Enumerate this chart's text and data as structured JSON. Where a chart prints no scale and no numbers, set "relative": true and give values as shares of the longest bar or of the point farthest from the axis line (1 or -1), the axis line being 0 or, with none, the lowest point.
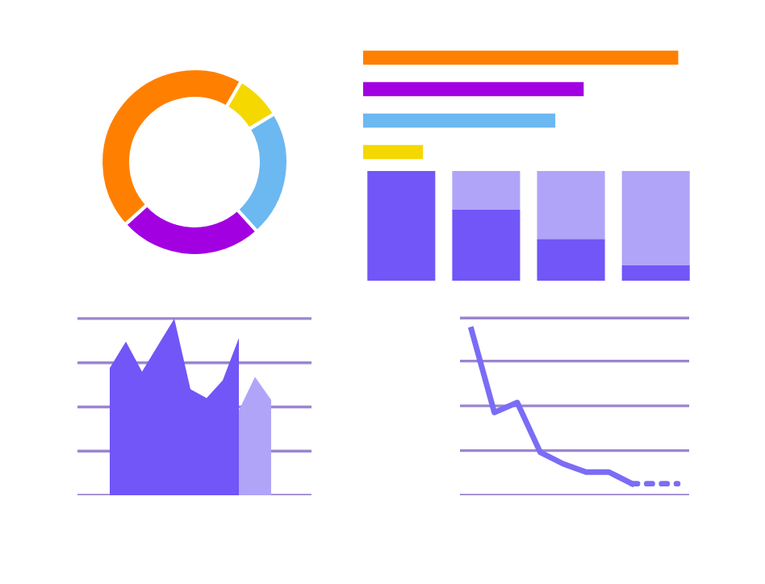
{
  "chart_data": [
    {
      "type": "donut",
      "categories": [
        null,
        null,
        null,
        null
      ],
      "values": [
        8,
        22,
        25,
        45
      ],
      "colors": [
        "#f5d800",
        "#6cb8f0",
        "#a200e0",
        "#ff8000"
      ]
    },
    {
      "type": "bar",
      "orientation": "horizontal",
      "relative": true,
      "categories": [
        null,
        null,
        null,
        null
      ],
      "values": [
        1,
        0.7,
        0.61,
        0.19
      ],
      "colors": [
        "#ff8000",
        "#a200e0",
        "#6cb8f0",
        "#f5d800"
      ]
    },
    {
      "type": "bar",
      "stacked": true,
      "relative": true,
      "categories": [
        null,
        null,
        null,
        null
      ],
      "series": [
        {
          "color": "#7256f7",
          "values": [
            1,
            0.65,
            0.38,
            0.14
          ]
        },
        {
          "color": "#b0a4f8",
          "values": [
            0,
            0.35,
            0.62,
            0.86
          ]
        }
      ]
    },
    {
      "type": "area",
      "relative": true,
      "ref_lines": [
        {
          "axis": "y",
          "value": 0
        },
        {
          "axis": "y",
          "value": 0.25
        },
        {
          "axis": "y",
          "value": 0.5
        },
        {
          "axis": "y",
          "value": 0.75
        },
        {
          "axis": "y",
          "value": 1.0
        }
      ],
      "categories": [
        null,
        null,
        null,
        null,
        null,
        null,
        null,
        null,
        null,
        null,
        null
      ],
      "series": [
        {
          "color": "#b0a4f8",
          "values": [
            null,
            null,
            null,
            null,
            null,
            null,
            null,
            null,
            0.48,
            0.67,
            0.54
          ]
        },
        {
          "color": "#7256f7",
          "values": [
            0.72,
            0.87,
            0.7,
            0.85,
            1.0,
            0.6,
            0.55,
            0.65,
            0.89,
            null,
            null
          ]
        }
      ]
    },
    {
      "type": "line",
      "relative": true,
      "ref_lines": [
        {
          "axis": "y",
          "value": 0
        },
        {
          "axis": "y",
          "value": 0.27
        },
        {
          "axis": "y",
          "value": 0.54
        },
        {
          "axis": "y",
          "value": 0.81
        },
        {
          "axis": "y",
          "value": 1.07
        }
      ],
      "categories": [
        null,
        null,
        null,
        null,
        null,
        null,
        null,
        null,
        null,
        null
      ],
      "series": [
        {
          "color": "#7b6cf6",
          "line_style": "solid",
          "values": [
            1.0,
            0.5,
            0.56,
            0.26,
            0.19,
            0.14,
            0.14,
            0.07,
            null,
            null
          ]
        },
        {
          "color": "#7b6cf6",
          "line_style": "dotted",
          "values": [
            null,
            null,
            null,
            null,
            null,
            null,
            null,
            0.07,
            0.07,
            0.07
          ]
        }
      ]
    }
  ]
}
